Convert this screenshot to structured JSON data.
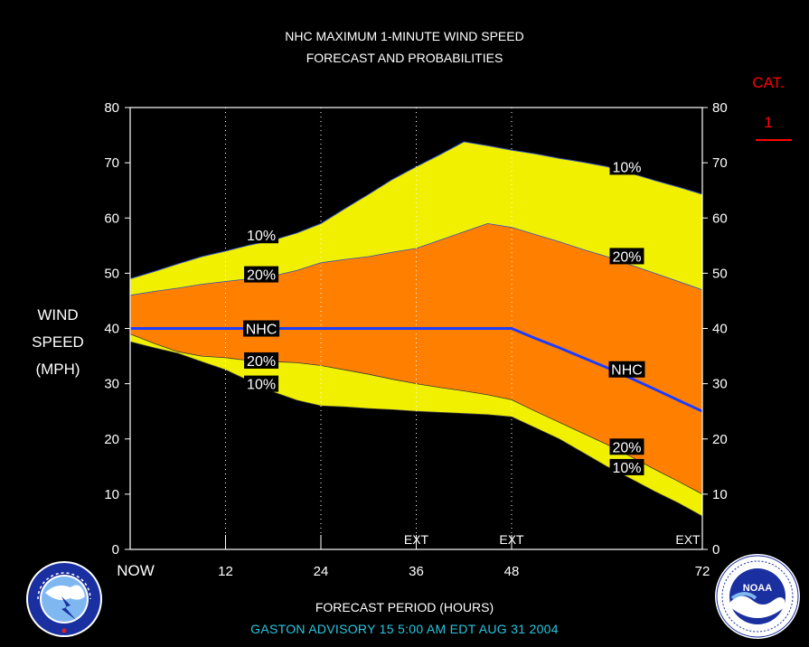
{
  "header": {
    "title_line1": "NHC MAXIMUM 1-MINUTE WIND SPEED",
    "title_line2": "FORECAST AND PROBABILITIES"
  },
  "yaxis": {
    "label_line1": "WIND",
    "label_line2": "SPEED",
    "label_line3": "(MPH)"
  },
  "xaxis": {
    "label": "FORECAST PERIOD (HOURS)"
  },
  "footer": {
    "advisory": "GASTON   ADVISORY  15 5:00  AM  EDT  AUG 31  2004"
  },
  "category": {
    "label": "CAT.",
    "value": "1"
  },
  "logos": {
    "left": "national-weather-service-logo",
    "right": "noaa-logo"
  },
  "colors": {
    "ten_pct": "#f0f000",
    "twenty_pct": "#ff8000",
    "nhc_line": "#1c3cff",
    "category": "#ff0000",
    "advisory": "#26c7e0"
  },
  "chart_data": {
    "type": "area",
    "title": "NHC MAXIMUM 1-MINUTE WIND SPEED FORECAST AND PROBABILITIES",
    "xlabel": "FORECAST PERIOD (HOURS)",
    "ylabel": "WIND SPEED (MPH)",
    "xlim": [
      0,
      72
    ],
    "ylim": [
      0,
      80
    ],
    "x_ticks": [
      {
        "x": 0,
        "label": "NOW"
      },
      {
        "x": 12,
        "label": "12"
      },
      {
        "x": 24,
        "label": "24"
      },
      {
        "x": 36,
        "label": "36"
      },
      {
        "x": 48,
        "label": "48"
      },
      {
        "x": 72,
        "label": "72"
      }
    ],
    "y_ticks": [
      0,
      10,
      20,
      30,
      40,
      50,
      60,
      70,
      80
    ],
    "dotted_gridlines_x": [
      12,
      24,
      36,
      48
    ],
    "ext_labels": [
      {
        "x": 36,
        "label": "EXT"
      },
      {
        "x": 48,
        "label": "EXT"
      },
      {
        "x": 72,
        "label": "EXT"
      }
    ],
    "x": [
      0,
      3,
      6,
      9,
      12,
      15,
      18,
      21,
      24,
      27,
      30,
      33,
      36,
      39,
      42,
      45,
      48,
      51,
      54,
      57,
      60,
      63,
      66,
      69,
      72
    ],
    "series": [
      {
        "name": "10%",
        "band": "upper",
        "values": [
          49,
          50.3,
          51.7,
          53,
          54,
          55.1,
          56,
          57.3,
          59,
          61.7,
          64.3,
          67,
          69.3,
          71.5,
          73.8,
          73.1,
          72.3,
          71.6,
          70.8,
          70.1,
          69.3,
          68.1,
          66.8,
          65.6,
          64.3
        ]
      },
      {
        "name": "20%",
        "band": "upper",
        "values": [
          46,
          46.7,
          47.3,
          48,
          48.5,
          49,
          49.5,
          50.5,
          51.9,
          52.5,
          53,
          53.8,
          54.5,
          56,
          57.5,
          59,
          58.3,
          57,
          55.7,
          54.3,
          53,
          51.5,
          50,
          48.5,
          47
        ]
      },
      {
        "name": "NHC",
        "values": [
          40,
          40,
          40,
          40,
          40,
          40,
          40,
          40,
          40,
          40,
          40,
          40,
          40,
          40,
          40,
          40,
          40,
          38.2,
          36.5,
          34.7,
          32.9,
          31,
          29,
          27,
          25
        ]
      },
      {
        "name": "20%",
        "band": "lower",
        "values": [
          39,
          37.3,
          35.8,
          35,
          34.7,
          34.2,
          34,
          33.8,
          33.3,
          32.5,
          31.7,
          30.8,
          30,
          29.3,
          28.7,
          28,
          27.1,
          25,
          23,
          21,
          19,
          16.8,
          14.5,
          12.3,
          10
        ]
      },
      {
        "name": "10%",
        "band": "lower",
        "values": [
          37.6,
          36.5,
          35.5,
          34,
          32.5,
          30.5,
          28.5,
          27,
          26,
          25.8,
          25.5,
          25.3,
          25,
          24.8,
          24.6,
          24.4,
          24,
          22,
          20,
          17.5,
          15,
          12.8,
          10.5,
          8.4,
          6
        ]
      }
    ],
    "band_labels": [
      {
        "text": "10%",
        "x": 16.5,
        "y": 56.9
      },
      {
        "text": "20%",
        "x": 16.5,
        "y": 49.8
      },
      {
        "text": "NHC",
        "x": 16.5,
        "y": 40
      },
      {
        "text": "20%",
        "x": 16.5,
        "y": 34.2
      },
      {
        "text": "10%",
        "x": 16.5,
        "y": 30
      },
      {
        "text": "10%",
        "x": 62.5,
        "y": 69.3
      },
      {
        "text": "20%",
        "x": 62.5,
        "y": 53.1
      },
      {
        "text": "NHC",
        "x": 62.5,
        "y": 32.6
      },
      {
        "text": "20%",
        "x": 62.5,
        "y": 18.6
      },
      {
        "text": "10%",
        "x": 62.5,
        "y": 14.9
      }
    ]
  }
}
